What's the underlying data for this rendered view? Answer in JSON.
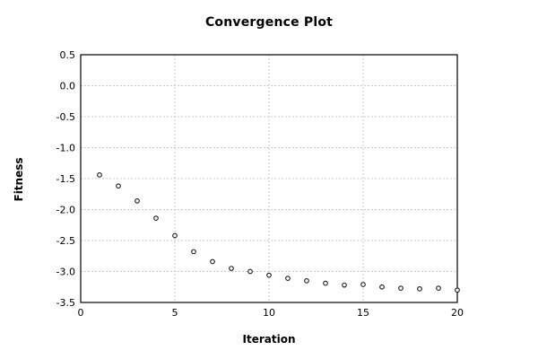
{
  "chart_data": {
    "type": "scatter",
    "title": "Convergence Plot",
    "xlabel": "Iteration",
    "ylabel": "Fitness",
    "x": [
      1,
      2,
      3,
      4,
      5,
      6,
      7,
      8,
      9,
      10,
      11,
      12,
      13,
      14,
      15,
      16,
      17,
      18,
      19,
      20
    ],
    "values": [
      -1.44,
      -1.62,
      -1.86,
      -2.14,
      -2.42,
      -2.68,
      -2.84,
      -2.95,
      -3.0,
      -3.06,
      -3.11,
      -3.15,
      -3.19,
      -3.22,
      -3.21,
      -3.25,
      -3.27,
      -3.28,
      -3.27,
      -3.3
    ],
    "xlim": [
      0,
      20
    ],
    "ylim": [
      -3.5,
      0.5
    ],
    "xtick_labels": [
      "0",
      "5",
      "10",
      "15",
      "20"
    ],
    "ytick_labels": [
      "0.5",
      "0.0",
      "-0.5",
      "-1.0",
      "-1.5",
      "-2.0",
      "-2.5",
      "-3.0",
      "-3.5"
    ],
    "grid_style": "dashed",
    "legend_position": "none",
    "marker_style": "open-circle",
    "colors": {
      "background": "#ffffff",
      "frame": "#000000",
      "grid": "#c9c9c9",
      "marker_stroke": "#1a1a1a",
      "marker_fill": "#ffffff",
      "text": "#000000"
    }
  }
}
